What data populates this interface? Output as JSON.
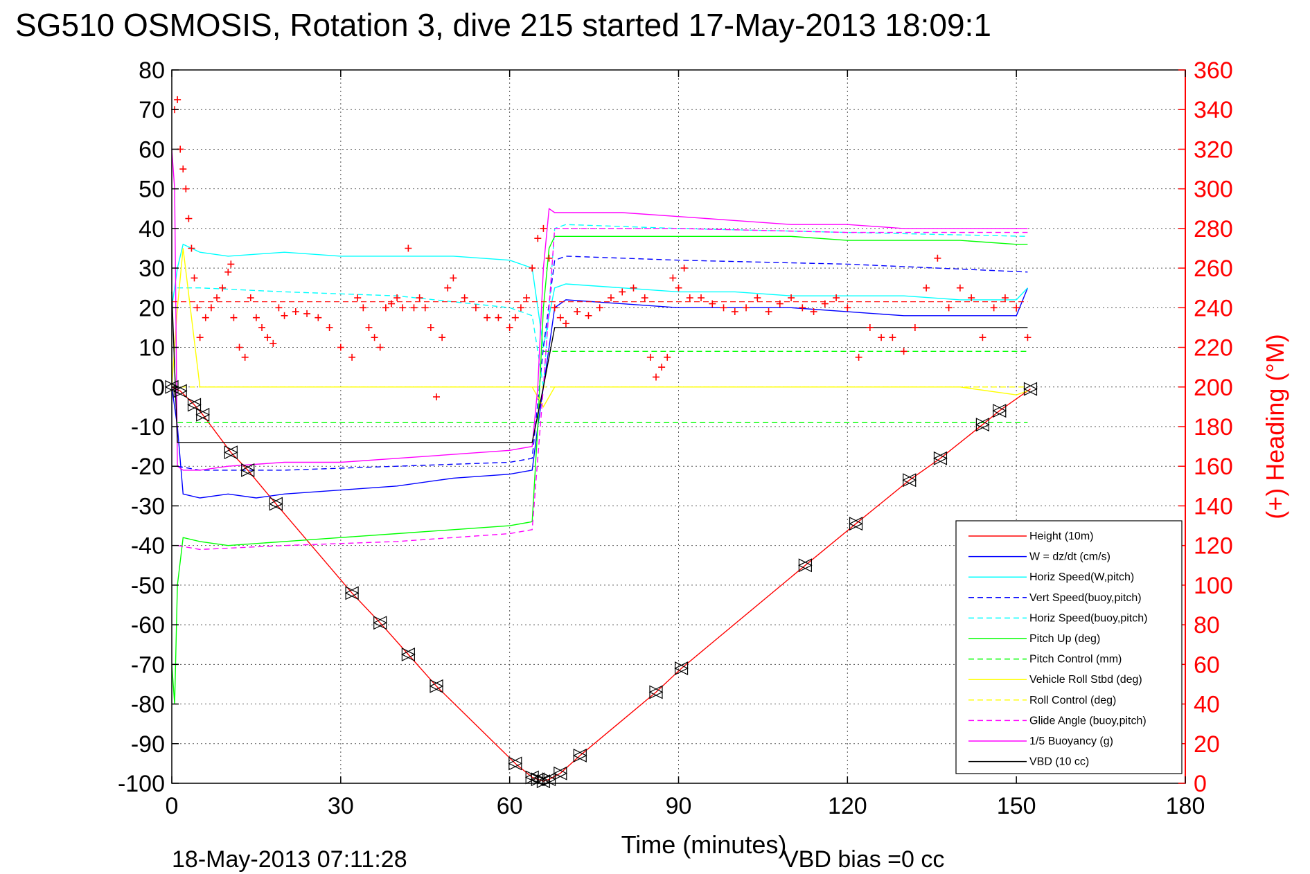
{
  "chart_data": {
    "type": "line",
    "title": "SG510 OSMOSIS, Rotation 3, dive 215 started 17-May-2013 18:09:1",
    "xlabel": "Time (minutes)",
    "ylabel": "",
    "y2label": "(+) Heading (°M)",
    "xlim": [
      0,
      180
    ],
    "ylim": [
      -100,
      80
    ],
    "y2lim": [
      0,
      360
    ],
    "xticks": [
      0,
      30,
      60,
      90,
      120,
      150,
      180
    ],
    "yticks": [
      80,
      70,
      60,
      50,
      40,
      30,
      20,
      10,
      0,
      -10,
      -20,
      -30,
      -40,
      -50,
      -60,
      -70,
      -80,
      -90,
      -100
    ],
    "y2ticks": [
      360,
      340,
      320,
      300,
      280,
      260,
      240,
      220,
      200,
      180,
      160,
      140,
      120,
      100,
      80,
      60,
      40,
      20,
      0
    ],
    "grid": true,
    "legend_position": "bottom-right",
    "footer_left": "18-May-2013 07:11:28",
    "footer_right": "VBD bias =0 cc",
    "series": [
      {
        "name": "Height (10m)",
        "color": "#ff0000",
        "style": "solid",
        "x": [
          0,
          1.5,
          4,
          5.5,
          10.5,
          13.5,
          18.5,
          32,
          37,
          42,
          47,
          61,
          64,
          65,
          66,
          67,
          69,
          72.5,
          86,
          90.5,
          112.5,
          121.5,
          131,
          136.5,
          144,
          147,
          152.5
        ],
        "y": [
          0,
          -1,
          -4.5,
          -7,
          -16.5,
          -21,
          -29.5,
          -52,
          -59.5,
          -67.5,
          -75.5,
          -95,
          -98.5,
          -99,
          -99.5,
          -99,
          -97.5,
          -93,
          -77,
          -71,
          -45,
          -34.5,
          -23.5,
          -18,
          -9.5,
          -6,
          -0.5
        ]
      },
      {
        "name": "W = dz/dt (cm/s)",
        "color": "#0000ff",
        "style": "solid",
        "x": [
          0,
          1,
          2,
          5,
          10,
          15,
          20,
          30,
          40,
          50,
          60,
          64,
          65,
          66,
          67,
          68,
          70,
          80,
          90,
          100,
          110,
          120,
          130,
          140,
          150,
          152
        ],
        "y": [
          0,
          -10,
          -27,
          -28,
          -27,
          -28,
          -27,
          -26,
          -25,
          -23,
          -22,
          -21,
          -10,
          0,
          10,
          20,
          22,
          21,
          20,
          20,
          20,
          19,
          18,
          18,
          18,
          25
        ]
      },
      {
        "name": "Horiz Speed(W,pitch)",
        "color": "#00ffff",
        "style": "solid",
        "x": [
          0,
          1,
          2,
          5,
          10,
          20,
          30,
          40,
          50,
          60,
          64,
          65,
          66,
          67,
          68,
          70,
          80,
          90,
          100,
          110,
          120,
          130,
          140,
          150,
          152
        ],
        "y": [
          20,
          30,
          36,
          34,
          33,
          34,
          33,
          33,
          33,
          32,
          30,
          20,
          10,
          18,
          25,
          26,
          25,
          24,
          24,
          23,
          23,
          23,
          22,
          22,
          25
        ]
      },
      {
        "name": "Vert Speed(buoy,pitch)",
        "color": "#0000ff",
        "style": "dashed",
        "x": [
          1,
          5,
          20,
          40,
          60,
          64,
          66,
          68,
          70,
          90,
          120,
          152
        ],
        "y": [
          -20,
          -21,
          -21,
          -20,
          -19,
          -18,
          10,
          32,
          33,
          32,
          31,
          29
        ]
      },
      {
        "name": "Horiz Speed(buoy,pitch)",
        "color": "#00ffff",
        "style": "dashed",
        "x": [
          1,
          5,
          20,
          40,
          60,
          64,
          66,
          68,
          70,
          90,
          120,
          152
        ],
        "y": [
          25,
          25,
          24,
          23,
          20,
          18,
          0,
          40,
          41,
          40,
          39,
          38
        ]
      },
      {
        "name": "Pitch Up (deg)",
        "color": "#00ff00",
        "style": "solid",
        "x": [
          0,
          0.5,
          1,
          2,
          5,
          10,
          20,
          30,
          40,
          50,
          60,
          64,
          65,
          66,
          67,
          68,
          70,
          80,
          90,
          100,
          110,
          120,
          130,
          140,
          150,
          152
        ],
        "y": [
          -70,
          -80,
          -50,
          -38,
          -39,
          -40,
          -39,
          -38,
          -37,
          -36,
          -35,
          -34,
          -10,
          20,
          35,
          38,
          38,
          38,
          38,
          38,
          38,
          37,
          37,
          37,
          36,
          36
        ]
      },
      {
        "name": "Pitch Control (mm)",
        "color": "#00ff00",
        "style": "dashed",
        "x": [
          1,
          152
        ],
        "y": [
          -9,
          -9
        ],
        "x2": [
          66,
          152
        ],
        "y2": [
          9,
          9
        ]
      },
      {
        "name": "Vehicle Roll Stbd (deg)",
        "color": "#ffff00",
        "style": "solid",
        "x": [
          0,
          1,
          2,
          5,
          10,
          20,
          30,
          40,
          50,
          60,
          64,
          66,
          68,
          70,
          80,
          90,
          100,
          110,
          120,
          130,
          140,
          150,
          152
        ],
        "y": [
          0,
          20,
          35,
          0,
          0,
          0,
          0,
          0,
          0,
          0,
          0,
          -5,
          0,
          0,
          0,
          0,
          0,
          0,
          0,
          0,
          0,
          -2,
          -1
        ]
      },
      {
        "name": "Roll Control (deg)",
        "color": "#ffff00",
        "style": "dashed",
        "x": [
          0,
          152
        ],
        "y": [
          0,
          0
        ]
      },
      {
        "name": "Glide Angle (buoy,pitch)",
        "color": "#ff00ff",
        "style": "dashed",
        "x": [
          1,
          5,
          20,
          40,
          60,
          64,
          66,
          68,
          70,
          90,
          120,
          152
        ],
        "y": [
          -40,
          -41,
          -40,
          -39,
          -37,
          -36,
          0,
          40,
          40,
          40,
          39,
          39
        ]
      },
      {
        "name": "1/5 Buoyancy (g)",
        "color": "#ff00ff",
        "style": "solid",
        "x": [
          0,
          0.5,
          1,
          2,
          5,
          10,
          20,
          30,
          40,
          50,
          60,
          64,
          65,
          66,
          67,
          68,
          70,
          80,
          90,
          100,
          110,
          120,
          130,
          140,
          150,
          152
        ],
        "y": [
          60,
          50,
          -20,
          -21,
          -21,
          -20,
          -19,
          -19,
          -18,
          -17,
          -16,
          -15,
          0,
          30,
          45,
          44,
          44,
          44,
          43,
          42,
          41,
          41,
          40,
          40,
          40,
          40
        ]
      },
      {
        "name": "VBD (10 cc)",
        "color": "#000000",
        "style": "solid",
        "x": [
          0,
          1,
          2,
          64,
          66,
          68,
          152
        ],
        "y": [
          24,
          -14,
          -14,
          -14,
          0,
          15,
          15
        ]
      }
    ],
    "heading_series": {
      "name": "Heading (+)",
      "color": "#ff0000",
      "axis": "right",
      "x": [
        0.5,
        1,
        1.5,
        2,
        2.5,
        3,
        3.5,
        4,
        4.5,
        5,
        6,
        7,
        8,
        9,
        10,
        10.5,
        11,
        12,
        13,
        14,
        15,
        16,
        17,
        18,
        19,
        20,
        22,
        24,
        26,
        28,
        30,
        32,
        33,
        34,
        35,
        36,
        37,
        38,
        39,
        40,
        41,
        42,
        43,
        44,
        45,
        46,
        47,
        48,
        49,
        50,
        52,
        54,
        56,
        58,
        60,
        61,
        62,
        63,
        64,
        65,
        66,
        67,
        68,
        69,
        70,
        72,
        74,
        76,
        78,
        80,
        82,
        84,
        85,
        86,
        87,
        88,
        89,
        90,
        91,
        92,
        94,
        96,
        98,
        100,
        102,
        104,
        106,
        108,
        110,
        112,
        114,
        116,
        118,
        120,
        122,
        124,
        126,
        128,
        130,
        132,
        134,
        136,
        138,
        140,
        142,
        144,
        146,
        148,
        150,
        152
      ],
      "y": [
        340,
        345,
        320,
        310,
        300,
        285,
        270,
        255,
        240,
        225,
        235,
        240,
        245,
        250,
        258,
        262,
        235,
        220,
        215,
        245,
        235,
        230,
        225,
        222,
        240,
        236,
        238,
        237,
        235,
        230,
        220,
        215,
        245,
        240,
        230,
        225,
        220,
        240,
        242,
        245,
        240,
        270,
        240,
        245,
        240,
        230,
        195,
        225,
        250,
        255,
        245,
        240,
        235,
        235,
        230,
        235,
        240,
        245,
        260,
        275,
        280,
        265,
        240,
        235,
        232,
        238,
        236,
        240,
        245,
        248,
        250,
        245,
        215,
        205,
        210,
        215,
        255,
        250,
        260,
        245,
        245,
        242,
        240,
        238,
        240,
        245,
        238,
        242,
        245,
        240,
        238,
        242,
        245,
        240,
        215,
        230,
        225,
        225,
        218,
        230,
        250,
        265,
        240,
        250,
        245,
        225,
        240,
        245,
        240,
        225
      ]
    }
  }
}
